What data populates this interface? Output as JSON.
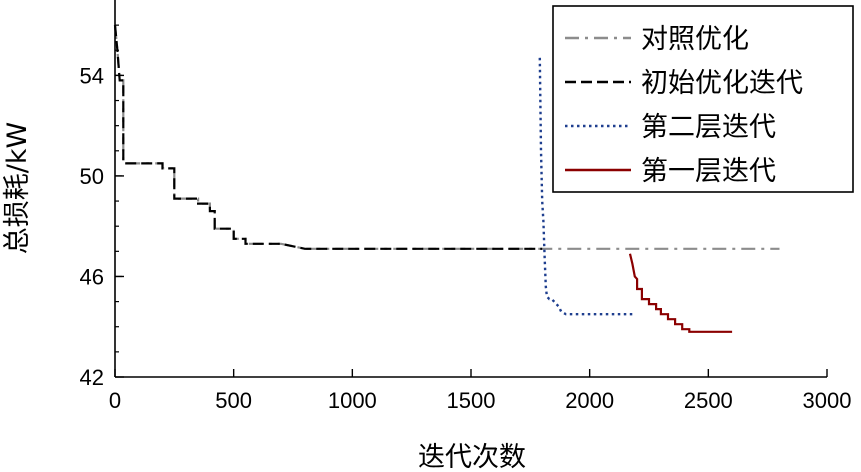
{
  "chart_data": {
    "type": "line",
    "xlabel": "迭代次数",
    "ylabel": "总损耗/kW",
    "xlim": [
      0,
      3000
    ],
    "ylim": [
      42,
      57
    ],
    "x_ticks": [
      "0",
      "500",
      "1000",
      "1500",
      "2000",
      "2500",
      "3000"
    ],
    "y_ticks": [
      "42",
      "46",
      "50",
      "54"
    ],
    "grid": false,
    "legend_position": "top-right",
    "series": [
      {
        "name": "对照优化",
        "style": "dashdot",
        "color": "#8c8c8c",
        "x": [
          0,
          10,
          20,
          35,
          35,
          200,
          200,
          250,
          250,
          350,
          350,
          400,
          400,
          420,
          420,
          500,
          500,
          550,
          550,
          700,
          800,
          1000,
          1500,
          2000,
          2500,
          2800
        ],
        "y": [
          56.0,
          55.0,
          53.8,
          53.8,
          50.5,
          50.5,
          50.3,
          50.3,
          49.1,
          49.1,
          48.9,
          48.9,
          48.6,
          48.6,
          47.9,
          47.9,
          47.5,
          47.5,
          47.3,
          47.3,
          47.1,
          47.1,
          47.1,
          47.1,
          47.1,
          47.1
        ]
      },
      {
        "name": "初始优化迭代",
        "style": "dashed",
        "color": "#000000",
        "x": [
          0,
          10,
          20,
          35,
          35,
          200,
          200,
          250,
          250,
          350,
          350,
          400,
          400,
          420,
          420,
          500,
          500,
          550,
          550,
          700,
          800,
          1000,
          1500,
          1800
        ],
        "y": [
          56.0,
          55.0,
          53.8,
          53.8,
          50.5,
          50.5,
          50.3,
          50.3,
          49.1,
          49.1,
          48.9,
          48.9,
          48.6,
          48.6,
          47.9,
          47.9,
          47.5,
          47.5,
          47.3,
          47.3,
          47.1,
          47.1,
          47.1,
          47.1
        ]
      },
      {
        "name": "第二层迭代",
        "style": "dotted",
        "color": "#1f3f8f",
        "x": [
          1790,
          1795,
          1800,
          1805,
          1810,
          1815,
          1820,
          1830,
          1840,
          1850,
          1860,
          1870,
          1880,
          1900,
          2000,
          2100,
          2180
        ],
        "y": [
          54.7,
          51.0,
          49.0,
          48.2,
          46.8,
          45.6,
          45.2,
          45.1,
          45.1,
          45.0,
          44.9,
          44.8,
          44.6,
          44.5,
          44.5,
          44.5,
          44.5
        ]
      },
      {
        "name": "第一层迭代",
        "style": "solid",
        "color": "#8b0000",
        "x": [
          2170,
          2180,
          2190,
          2200,
          2200,
          2220,
          2220,
          2250,
          2250,
          2280,
          2280,
          2300,
          2300,
          2330,
          2330,
          2360,
          2360,
          2390,
          2390,
          2420,
          2420,
          2450,
          2450,
          2500,
          2600
        ],
        "y": [
          46.9,
          46.5,
          46.0,
          45.9,
          45.5,
          45.5,
          45.1,
          45.1,
          44.9,
          44.9,
          44.7,
          44.7,
          44.5,
          44.5,
          44.3,
          44.3,
          44.1,
          44.1,
          43.9,
          43.9,
          43.8,
          43.8,
          43.8,
          43.8,
          43.8
        ]
      }
    ]
  }
}
